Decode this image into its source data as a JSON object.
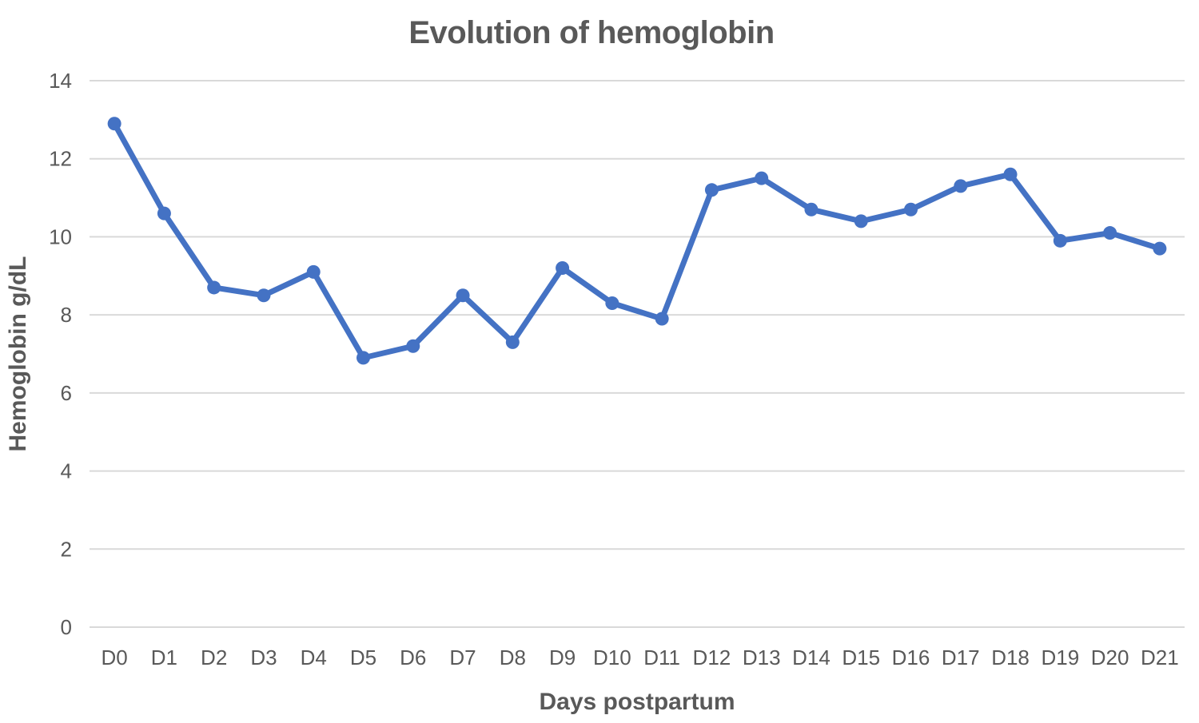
{
  "chart_data": {
    "type": "line",
    "title": "Evolution of hemoglobin",
    "xlabel": "Days postpartum",
    "ylabel": "Hemoglobin g/dL",
    "categories": [
      "D0",
      "D1",
      "D2",
      "D3",
      "D4",
      "D5",
      "D6",
      "D7",
      "D8",
      "D9",
      "D10",
      "D11",
      "D12",
      "D13",
      "D14",
      "D15",
      "D16",
      "D17",
      "D18",
      "D19",
      "D20",
      "D21"
    ],
    "series": [
      {
        "name": "Hemoglobin g/dL",
        "values": [
          12.9,
          10.6,
          8.7,
          8.5,
          9.1,
          6.9,
          7.2,
          8.5,
          7.3,
          9.2,
          8.3,
          7.9,
          11.2,
          11.5,
          10.7,
          10.4,
          10.7,
          11.3,
          11.6,
          9.9,
          10.1,
          9.7
        ]
      }
    ],
    "ylim": [
      0,
      14
    ],
    "yticks": [
      0,
      2,
      4,
      6,
      8,
      10,
      12,
      14
    ],
    "grid": "horizontal-only",
    "legend": "none",
    "marker": "circle",
    "colors": {
      "line": "#4472C4",
      "marker": "#4472C4",
      "text": "#595959",
      "gridline": "#D9D9D9",
      "background": "#FFFFFF"
    }
  }
}
